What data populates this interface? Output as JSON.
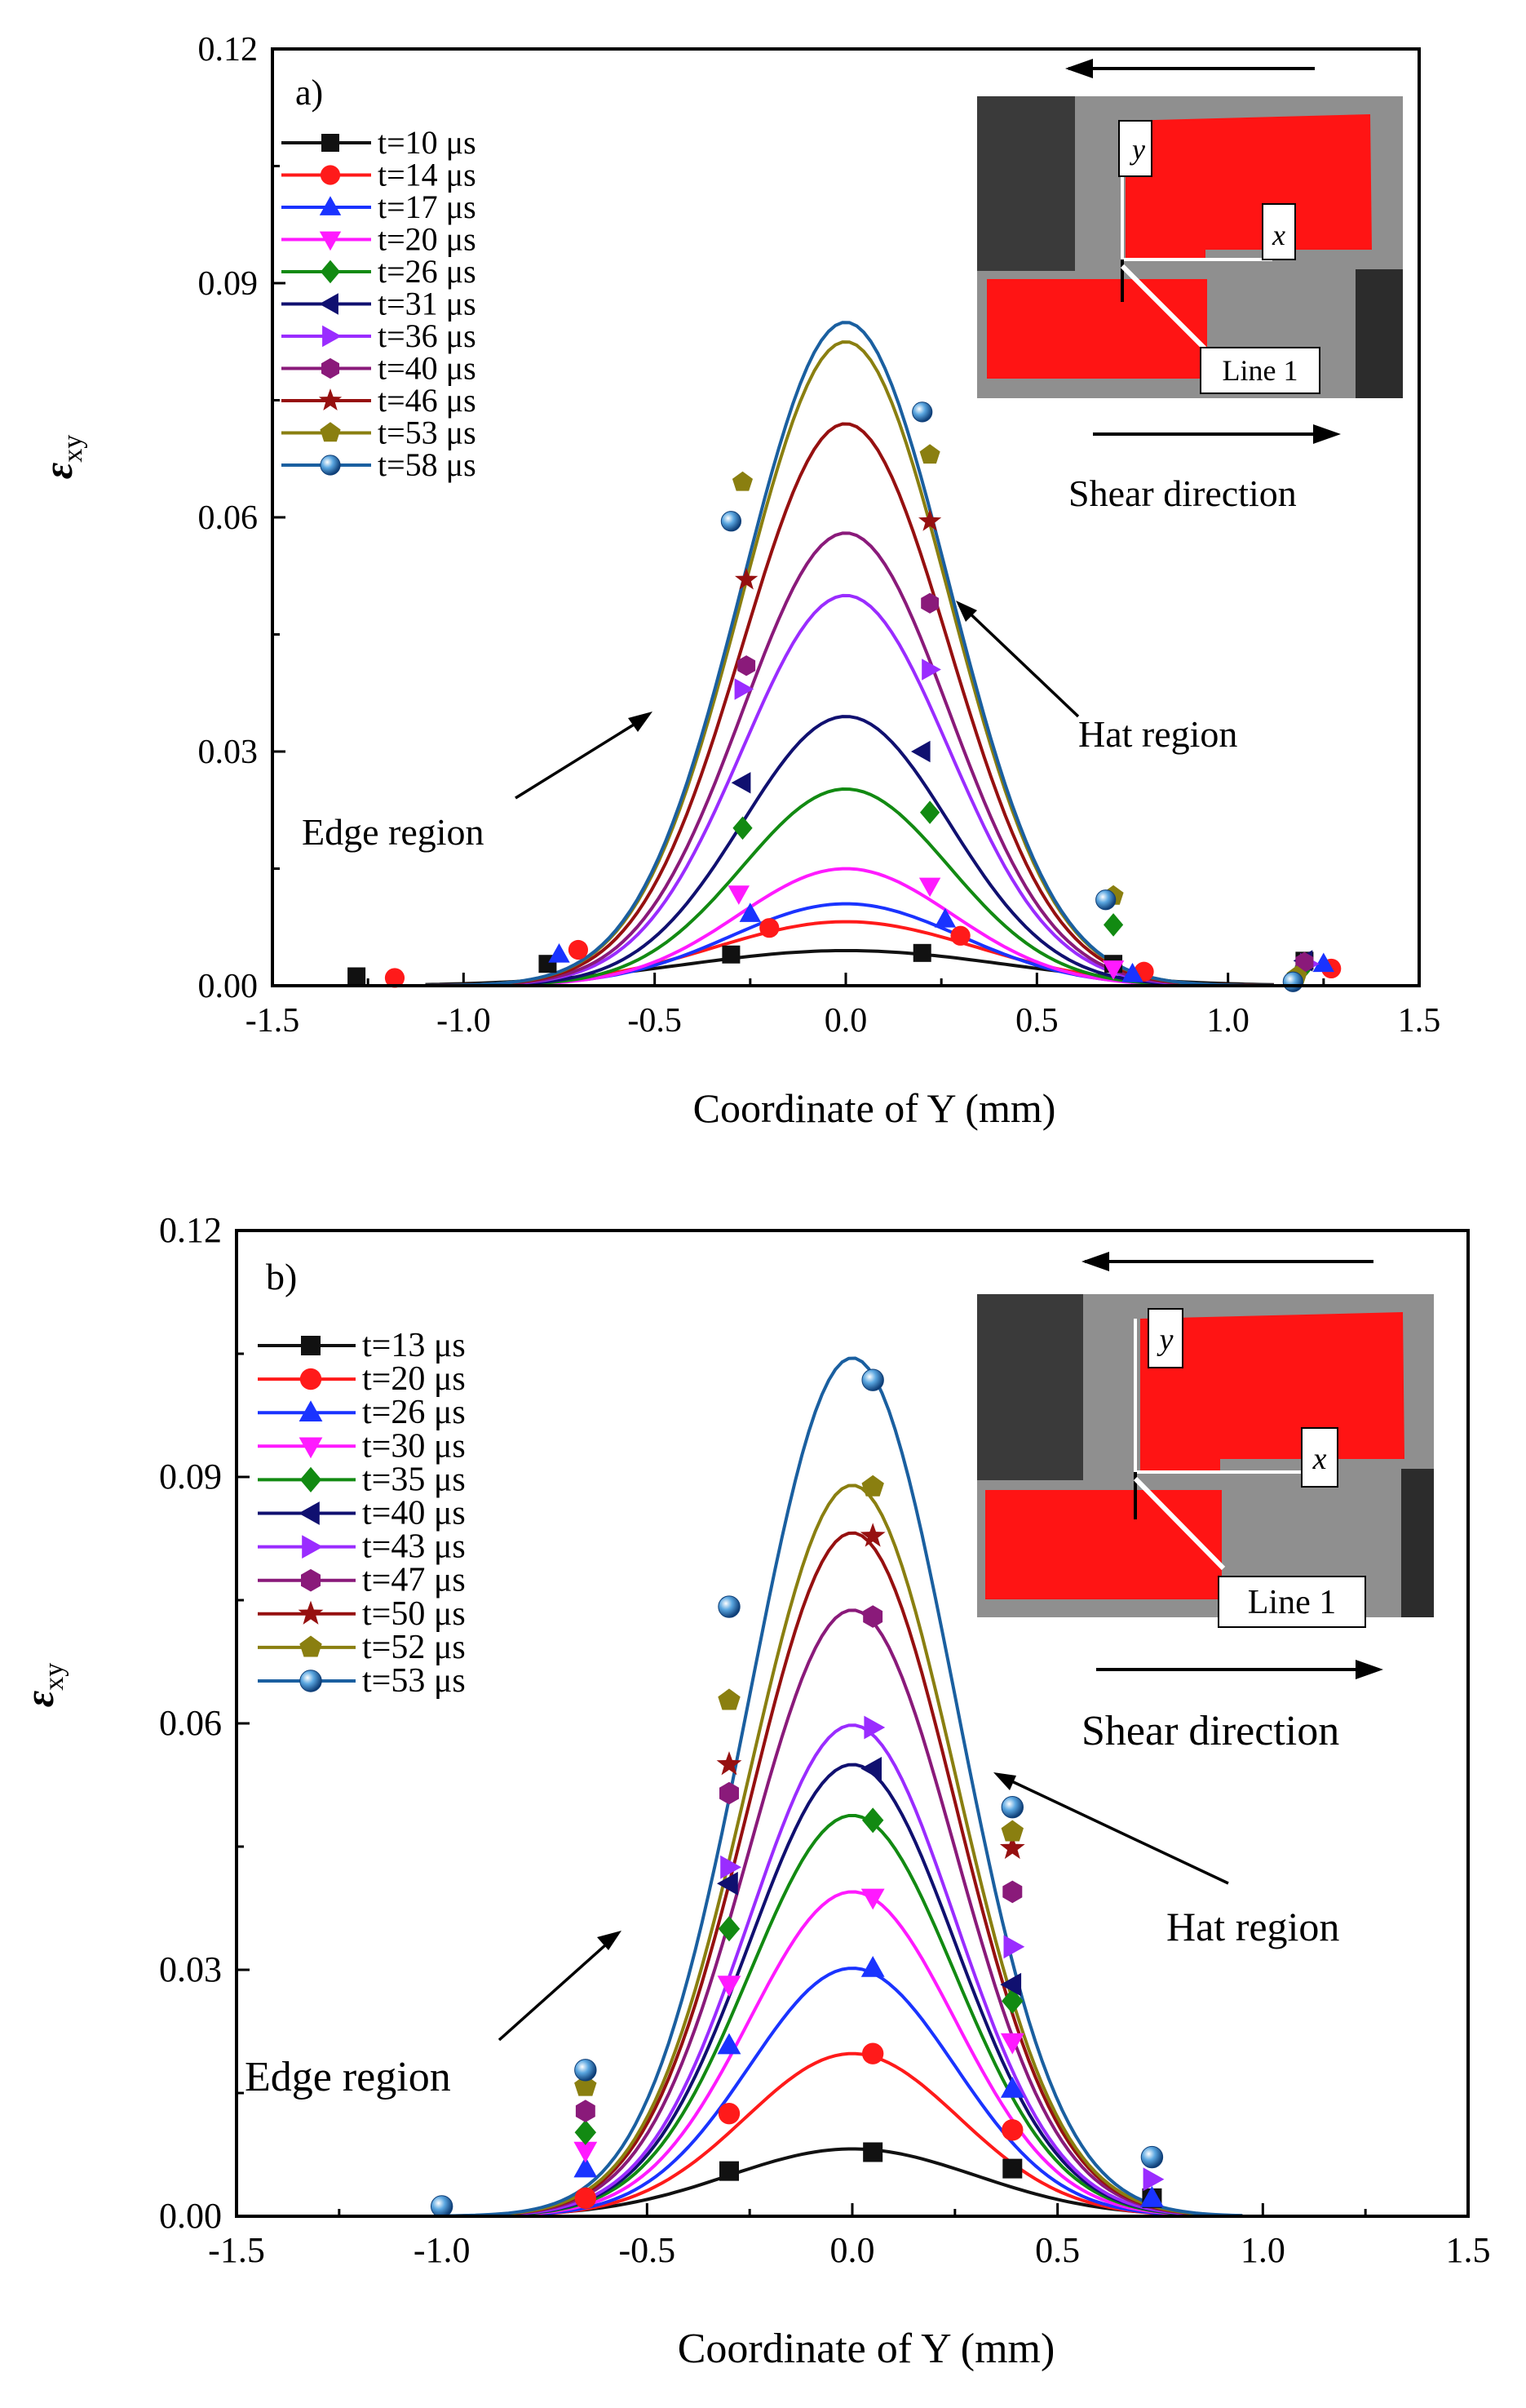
{
  "ylabel_symbol": "ε",
  "ylabel_sub": "xy",
  "colors": {
    "black": "#111111",
    "red": "#ff1a1a",
    "blue": "#1a33ff",
    "magenta": "#ff1aff",
    "green": "#128a12",
    "navy": "#101070",
    "violet": "#9a2cff",
    "purple": "#8a1a7a",
    "darkred": "#961010",
    "olive": "#8a7f10",
    "steel": "#1a5fa0"
  },
  "chart_data": [
    {
      "type": "line",
      "panel_label": "a)",
      "title": "",
      "xlabel": "Coordinate of Y (mm)",
      "ylabel": "εxy",
      "xlim": [
        -1.5,
        1.5
      ],
      "ylim": [
        0,
        0.12
      ],
      "xticks": [
        "-1.5",
        "-1.0",
        "-0.5",
        "0.0",
        "0.5",
        "1.0",
        "1.5"
      ],
      "yticks": [
        "0.00",
        "0.03",
        "0.06",
        "0.09",
        "0.12"
      ],
      "legend": "top-left",
      "annotations": {
        "edge": "Edge region",
        "hat": "Hat region",
        "shear": "Shear direction",
        "line1": "Line 1",
        "x_axis": "x",
        "y_axis": "y"
      },
      "series": [
        {
          "name": "t=10 μs",
          "color": "black",
          "marker": "square",
          "peak": 0.0045,
          "sigma": 0.42,
          "curve_x": [
            -1.1,
            1.12
          ],
          "marker_x": [
            -1.28,
            -0.78,
            -0.3,
            0.2,
            0.7,
            1.2
          ],
          "marker_y": [
            0.0012,
            0.0028,
            0.004,
            0.0042,
            0.0028,
            0.0032
          ]
        },
        {
          "name": "t=14 μs",
          "color": "red",
          "marker": "circle",
          "peak": 0.0082,
          "sigma": 0.34,
          "curve_x": [
            -1.1,
            1.12
          ],
          "marker_x": [
            -1.18,
            -0.7,
            -0.2,
            0.3,
            0.78,
            1.27
          ],
          "marker_y": [
            0.001,
            0.0046,
            0.0074,
            0.0064,
            0.0018,
            0.0022
          ]
        },
        {
          "name": "t=17 μs",
          "color": "blue",
          "marker": "triangle-up",
          "peak": 0.0105,
          "sigma": 0.3,
          "curve_x": [
            -1.1,
            1.12
          ],
          "marker_x": [
            -0.75,
            -0.25,
            0.26,
            0.75,
            1.25
          ],
          "marker_y": [
            0.004,
            0.0092,
            0.0085,
            0.0015,
            0.0028
          ]
        },
        {
          "name": "t=20 μs",
          "color": "magenta",
          "marker": "triangle-down",
          "peak": 0.015,
          "sigma": 0.28,
          "curve_x": [
            -1.1,
            1.12
          ],
          "marker_x": [
            -0.28,
            0.22,
            0.7
          ],
          "marker_y": [
            0.0118,
            0.0128,
            0.0022
          ]
        },
        {
          "name": "t=26 μs",
          "color": "green",
          "marker": "diamond",
          "peak": 0.0252,
          "sigma": 0.27,
          "curve_x": [
            -1.1,
            1.12
          ],
          "marker_x": [
            -0.27,
            0.22,
            0.7,
            1.2
          ],
          "marker_y": [
            0.0202,
            0.0222,
            0.0078,
            0.0025
          ]
        },
        {
          "name": "t=31 μs",
          "color": "navy",
          "marker": "triangle-left",
          "peak": 0.0345,
          "sigma": 0.27,
          "curve_x": [
            -1.1,
            1.12
          ],
          "marker_x": [
            -0.27,
            0.2,
            1.2
          ],
          "marker_y": [
            0.026,
            0.03,
            0.0032
          ]
        },
        {
          "name": "t=36 μs",
          "color": "violet",
          "marker": "triangle-right",
          "peak": 0.05,
          "sigma": 0.27,
          "curve_x": [
            -1.1,
            1.12
          ],
          "marker_x": [
            -0.27,
            0.22,
            1.21
          ],
          "marker_y": [
            0.038,
            0.0405,
            0.0028
          ]
        },
        {
          "name": "t=40 μs",
          "color": "purple",
          "marker": "hexagon",
          "peak": 0.058,
          "sigma": 0.27,
          "curve_x": [
            -1.1,
            1.12
          ],
          "marker_x": [
            -0.26,
            0.22,
            1.2
          ],
          "marker_y": [
            0.041,
            0.049,
            0.003
          ]
        },
        {
          "name": "t=46 μs",
          "color": "darkred",
          "marker": "star",
          "peak": 0.072,
          "sigma": 0.27,
          "curve_x": [
            -1.1,
            1.12
          ],
          "marker_x": [
            -0.26,
            0.22
          ],
          "marker_y": [
            0.052,
            0.0595
          ]
        },
        {
          "name": "t=53 μs",
          "color": "olive",
          "marker": "pentagon",
          "peak": 0.0825,
          "sigma": 0.27,
          "curve_x": [
            -1.1,
            1.12
          ],
          "marker_x": [
            -0.27,
            0.22,
            0.7,
            1.18
          ],
          "marker_y": [
            0.0645,
            0.068,
            0.0115,
            0.0012
          ]
        },
        {
          "name": "t=58 μs",
          "color": "steel",
          "marker": "sphere",
          "peak": 0.085,
          "sigma": 0.27,
          "curve_x": [
            -1.1,
            1.12
          ],
          "marker_x": [
            -0.3,
            0.2,
            0.68,
            1.17
          ],
          "marker_y": [
            0.0595,
            0.0735,
            0.011,
            0.0005
          ]
        }
      ]
    },
    {
      "type": "line",
      "panel_label": "b)",
      "title": "",
      "xlabel": "Coordinate of Y (mm)",
      "ylabel": "εxy",
      "xlim": [
        -1.5,
        1.5
      ],
      "ylim": [
        0,
        0.12
      ],
      "xticks": [
        "-1.5",
        "-1.0",
        "-0.5",
        "0.0",
        "0.5",
        "1.0",
        "1.5"
      ],
      "yticks": [
        "0.00",
        "0.03",
        "0.06",
        "0.09",
        "0.12"
      ],
      "legend": "top-left",
      "annotations": {
        "edge": "Edge region",
        "hat": "Hat region",
        "shear": "Shear direction",
        "line1": "Line 1",
        "x_axis": "x",
        "y_axis": "y"
      },
      "series": [
        {
          "name": "t=13 μs",
          "color": "black",
          "marker": "square",
          "peak": 0.0082,
          "sigma": 0.3,
          "curve_x": [
            -1.0,
            0.95
          ],
          "marker_x": [
            -0.3,
            0.05,
            0.39,
            0.73
          ],
          "marker_y": [
            0.0055,
            0.0078,
            0.0058,
            0.0022
          ]
        },
        {
          "name": "t=20 μs",
          "color": "red",
          "marker": "circle",
          "peak": 0.0198,
          "sigma": 0.26,
          "curve_x": [
            -1.0,
            0.95
          ],
          "marker_x": [
            -0.65,
            -0.3,
            0.05,
            0.39
          ],
          "marker_y": [
            0.0022,
            0.0125,
            0.0198,
            0.0105
          ]
        },
        {
          "name": "t=26 μs",
          "color": "blue",
          "marker": "triangle-up",
          "peak": 0.0302,
          "sigma": 0.25,
          "curve_x": [
            -1.0,
            0.95
          ],
          "marker_x": [
            -0.65,
            -0.3,
            0.05,
            0.39,
            0.73
          ],
          "marker_y": [
            0.0058,
            0.0208,
            0.0302,
            0.0155,
            0.0022
          ]
        },
        {
          "name": "t=30 μs",
          "color": "magenta",
          "marker": "triangle-down",
          "peak": 0.0395,
          "sigma": 0.25,
          "curve_x": [
            -1.0,
            0.95
          ],
          "marker_x": [
            -0.65,
            -0.3,
            0.05,
            0.39
          ],
          "marker_y": [
            0.008,
            0.0282,
            0.0388,
            0.0212
          ]
        },
        {
          "name": "t=35 μs",
          "color": "green",
          "marker": "diamond",
          "peak": 0.0488,
          "sigma": 0.25,
          "curve_x": [
            -1.0,
            0.95
          ],
          "marker_x": [
            -0.65,
            -0.3,
            0.05,
            0.39
          ],
          "marker_y": [
            0.0102,
            0.035,
            0.0482,
            0.0262
          ]
        },
        {
          "name": "t=40 μs",
          "color": "navy",
          "marker": "triangle-left",
          "peak": 0.055,
          "sigma": 0.25,
          "curve_x": [
            -1.0,
            0.95
          ],
          "marker_x": [
            -0.3,
            0.05,
            0.39
          ],
          "marker_y": [
            0.0405,
            0.0545,
            0.0282
          ]
        },
        {
          "name": "t=43 μs",
          "color": "violet",
          "marker": "triangle-right",
          "peak": 0.0598,
          "sigma": 0.25,
          "curve_x": [
            -1.0,
            0.95
          ],
          "marker_x": [
            -0.3,
            0.05,
            0.39,
            0.73
          ],
          "marker_y": [
            0.0425,
            0.0595,
            0.0328,
            0.0045
          ]
        },
        {
          "name": "t=47 μs",
          "color": "purple",
          "marker": "hexagon",
          "peak": 0.0738,
          "sigma": 0.25,
          "curve_x": [
            -1.0,
            0.95
          ],
          "marker_x": [
            -0.65,
            -0.3,
            0.05,
            0.39
          ],
          "marker_y": [
            0.0128,
            0.0515,
            0.073,
            0.0395
          ]
        },
        {
          "name": "t=50 μs",
          "color": "darkred",
          "marker": "star",
          "peak": 0.0832,
          "sigma": 0.25,
          "curve_x": [
            -1.0,
            0.95
          ],
          "marker_x": [
            -0.3,
            0.05,
            0.39
          ],
          "marker_y": [
            0.055,
            0.0828,
            0.0448
          ]
        },
        {
          "name": "t=52 μs",
          "color": "olive",
          "marker": "pentagon",
          "peak": 0.089,
          "sigma": 0.25,
          "curve_x": [
            -1.0,
            0.95
          ],
          "marker_x": [
            -0.65,
            -0.3,
            0.05,
            0.39
          ],
          "marker_y": [
            0.0158,
            0.0628,
            0.0888,
            0.0468
          ]
        },
        {
          "name": "t=53 μs",
          "color": "steel",
          "marker": "sphere",
          "peak": 0.1045,
          "sigma": 0.25,
          "curve_x": [
            -1.0,
            0.95
          ],
          "marker_x": [
            -1.0,
            -0.65,
            -0.3,
            0.05,
            0.39,
            0.73
          ],
          "marker_y": [
            0.0012,
            0.0178,
            0.0742,
            0.1018,
            0.0498,
            0.0072
          ]
        }
      ]
    }
  ]
}
